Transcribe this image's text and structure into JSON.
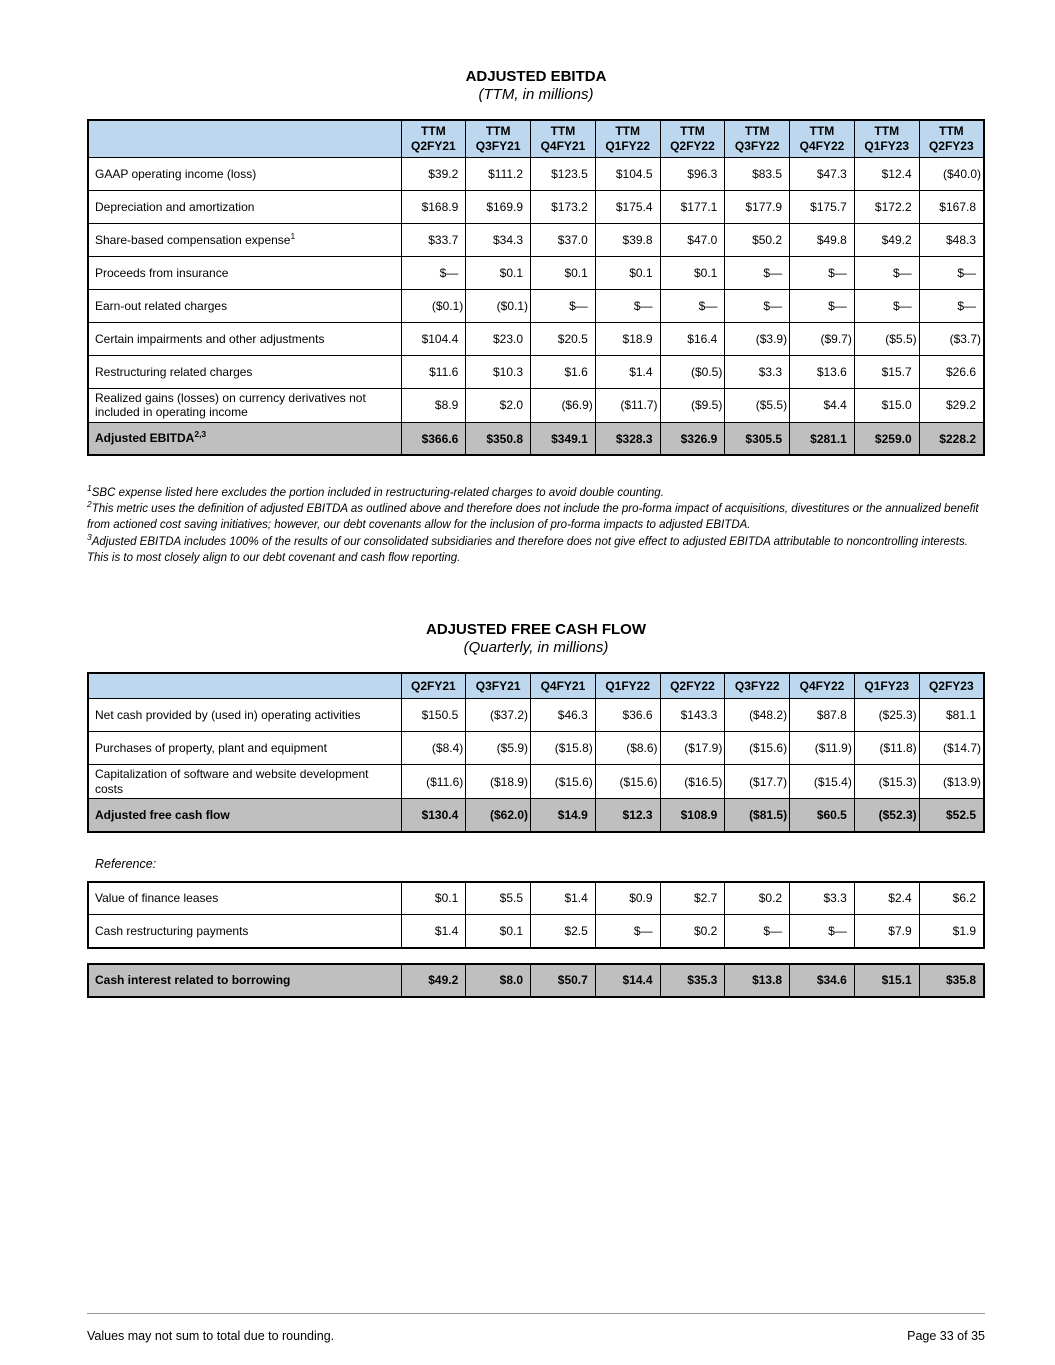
{
  "colors": {
    "header_bg": "#BDD7EE",
    "total_bg": "#BFBFBF"
  },
  "ebitda": {
    "title": "ADJUSTED EBITDA",
    "subtitle": "(TTM, in millions)",
    "column_prefix": "TTM",
    "columns": [
      "Q2FY21",
      "Q3FY21",
      "Q4FY21",
      "Q1FY22",
      "Q2FY22",
      "Q3FY22",
      "Q4FY22",
      "Q1FY23",
      "Q2FY23"
    ],
    "rows": [
      {
        "label": "GAAP operating income (loss)",
        "values": [
          "$39.2",
          "$111.2",
          "$123.5",
          "$104.5",
          "$96.3",
          "$83.5",
          "$47.3",
          "$12.4",
          "($40.0)"
        ]
      },
      {
        "label": "Depreciation and amortization",
        "values": [
          "$168.9",
          "$169.9",
          "$173.2",
          "$175.4",
          "$177.1",
          "$177.9",
          "$175.7",
          "$172.2",
          "$167.8"
        ]
      },
      {
        "label": "Share-based compensation expense",
        "sup": "1",
        "values": [
          "$33.7",
          "$34.3",
          "$37.0",
          "$39.8",
          "$47.0",
          "$50.2",
          "$49.8",
          "$49.2",
          "$48.3"
        ]
      },
      {
        "label": "Proceeds from insurance",
        "values": [
          "$—",
          "$0.1",
          "$0.1",
          "$0.1",
          "$0.1",
          "$—",
          "$—",
          "$—",
          "$—"
        ]
      },
      {
        "label": "Earn-out related charges",
        "values": [
          "($0.1)",
          "($0.1)",
          "$—",
          "$—",
          "$—",
          "$—",
          "$—",
          "$—",
          "$—"
        ]
      },
      {
        "label": "Certain impairments and other adjustments",
        "values": [
          "$104.4",
          "$23.0",
          "$20.5",
          "$18.9",
          "$16.4",
          "($3.9)",
          "($9.7)",
          "($5.5)",
          "($3.7)"
        ]
      },
      {
        "label": "Restructuring related charges",
        "values": [
          "$11.6",
          "$10.3",
          "$1.6",
          "$1.4",
          "($0.5)",
          "$3.3",
          "$13.6",
          "$15.7",
          "$26.6"
        ]
      },
      {
        "label": "Realized gains (losses) on currency derivatives not included in operating income",
        "values": [
          "$8.9",
          "$2.0",
          "($6.9)",
          "($11.7)",
          "($9.5)",
          "($5.5)",
          "$4.4",
          "$15.0",
          "$29.2"
        ]
      },
      {
        "label": "Adjusted EBITDA",
        "sup": "2,3",
        "total": true,
        "values": [
          "$366.6",
          "$350.8",
          "$349.1",
          "$328.3",
          "$326.9",
          "$305.5",
          "$281.1",
          "$259.0",
          "$228.2"
        ]
      }
    ],
    "footnotes": [
      {
        "sup": "1",
        "text": "SBC expense listed here excludes the portion included in restructuring-related charges to avoid double counting."
      },
      {
        "sup": "2",
        "text": "This metric uses the definition of adjusted EBITDA as outlined above and therefore does not include the pro-forma impact of acquisitions, divestitures or the annualized benefit from actioned cost saving initiatives; however, our debt covenants allow for the inclusion of pro-forma impacts to adjusted EBITDA."
      },
      {
        "sup": "3",
        "text": "Adjusted EBITDA includes 100% of the results of our consolidated subsidiaries and therefore does not give effect to adjusted EBITDA attributable to noncontrolling interests. This is to most closely align to our debt covenant and cash flow reporting."
      }
    ]
  },
  "fcf": {
    "title": "ADJUSTED FREE CASH FLOW",
    "subtitle": "(Quarterly, in millions)",
    "columns": [
      "Q2FY21",
      "Q3FY21",
      "Q4FY21",
      "Q1FY22",
      "Q2FY22",
      "Q3FY22",
      "Q4FY22",
      "Q1FY23",
      "Q2FY23"
    ],
    "rows": [
      {
        "label": "Net cash provided by (used in) operating activities",
        "values": [
          "$150.5",
          "($37.2)",
          "$46.3",
          "$36.6",
          "$143.3",
          "($48.2)",
          "$87.8",
          "($25.3)",
          "$81.1"
        ]
      },
      {
        "label": "Purchases of property, plant and equipment",
        "values": [
          "($8.4)",
          "($5.9)",
          "($15.8)",
          "($8.6)",
          "($17.9)",
          "($15.6)",
          "($11.9)",
          "($11.8)",
          "($14.7)"
        ]
      },
      {
        "label": "Capitalization of software and website development costs",
        "values": [
          "($11.6)",
          "($18.9)",
          "($15.6)",
          "($15.6)",
          "($16.5)",
          "($17.7)",
          "($15.4)",
          "($15.3)",
          "($13.9)"
        ]
      },
      {
        "label": "Adjusted free cash flow",
        "total": true,
        "values": [
          "$130.4",
          "($62.0)",
          "$14.9",
          "$12.3",
          "$108.9",
          "($81.5)",
          "$60.5",
          "($52.3)",
          "$52.5"
        ]
      }
    ],
    "reference_label": "Reference:",
    "reference_rows": [
      {
        "label": "Value of finance leases",
        "values": [
          "$0.1",
          "$5.5",
          "$1.4",
          "$0.9",
          "$2.7",
          "$0.2",
          "$3.3",
          "$2.4",
          "$6.2"
        ]
      },
      {
        "label": "Cash restructuring payments",
        "values": [
          "$1.4",
          "$0.1",
          "$2.5",
          "$—",
          "$0.2",
          "$—",
          "$—",
          "$7.9",
          "$1.9"
        ]
      }
    ],
    "interest_rows": [
      {
        "label": "Cash interest related to borrowing",
        "total": true,
        "values": [
          "$49.2",
          "$8.0",
          "$50.7",
          "$14.4",
          "$35.3",
          "$13.8",
          "$34.6",
          "$15.1",
          "$35.8"
        ]
      }
    ]
  },
  "footer": {
    "note": "Values may not sum to total due to rounding.",
    "page_number": "Page 33 of 35"
  }
}
